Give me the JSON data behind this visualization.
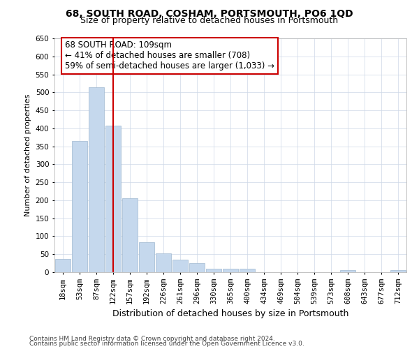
{
  "title": "68, SOUTH ROAD, COSHAM, PORTSMOUTH, PO6 1QD",
  "subtitle": "Size of property relative to detached houses in Portsmouth",
  "xlabel": "Distribution of detached houses by size in Portsmouth",
  "ylabel": "Number of detached properties",
  "categories": [
    "18sqm",
    "53sqm",
    "87sqm",
    "122sqm",
    "157sqm",
    "192sqm",
    "226sqm",
    "261sqm",
    "296sqm",
    "330sqm",
    "365sqm",
    "400sqm",
    "434sqm",
    "469sqm",
    "504sqm",
    "539sqm",
    "573sqm",
    "608sqm",
    "643sqm",
    "677sqm",
    "712sqm"
  ],
  "values": [
    37,
    365,
    515,
    408,
    205,
    83,
    53,
    35,
    25,
    10,
    10,
    10,
    0,
    0,
    0,
    0,
    0,
    5,
    0,
    0,
    5
  ],
  "bar_color": "#c5d8ed",
  "bar_edge_color": "#a0b8d0",
  "vline_x": 2.98,
  "vline_color": "#cc0000",
  "annotation_text": "68 SOUTH ROAD: 109sqm\n← 41% of detached houses are smaller (708)\n59% of semi-detached houses are larger (1,033) →",
  "annotation_box_color": "#ffffff",
  "annotation_box_edge": "#cc0000",
  "ylim": [
    0,
    650
  ],
  "yticks": [
    0,
    50,
    100,
    150,
    200,
    250,
    300,
    350,
    400,
    450,
    500,
    550,
    600,
    650
  ],
  "footer1": "Contains HM Land Registry data © Crown copyright and database right 2024.",
  "footer2": "Contains public sector information licensed under the Open Government Licence v3.0.",
  "bg_color": "#ffffff",
  "grid_color": "#cdd8e8",
  "title_fontsize": 10,
  "subtitle_fontsize": 9,
  "annotation_fontsize": 8.5,
  "xlabel_fontsize": 9,
  "ylabel_fontsize": 8,
  "tick_fontsize": 7.5,
  "footer_fontsize": 6.5
}
